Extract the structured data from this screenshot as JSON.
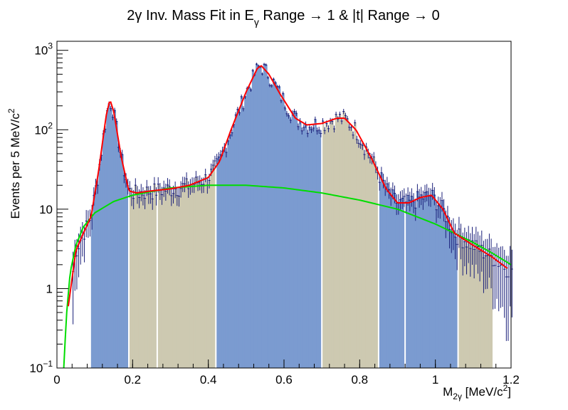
{
  "chart_data": {
    "type": "bar",
    "title": "2γ Inv. Mass Fit in E",
    "title_sub": "γ",
    "title_rest": " Range → 1 & |t| Range → 0",
    "xlabel": "M",
    "xlabel_sub": "2γ",
    "xlabel_rest": " [MeV/c",
    "xlabel_sup": "2",
    "xlabel_end": "]",
    "ylabel": "Events per 5 MeV/c",
    "ylabel_sup": "2",
    "xlim": [
      0,
      1.2
    ],
    "ylim": [
      0.1,
      1300
    ],
    "yscale": "log",
    "grid": false,
    "x_ticks": [
      "0",
      "0.2",
      "0.4",
      "0.6",
      "0.8",
      "1",
      "1.2"
    ],
    "y_ticks": [
      {
        "base": "10",
        "exp": "−1"
      },
      {
        "base": "1",
        "exp": ""
      },
      {
        "base": "10",
        "exp": ""
      },
      {
        "base": "10",
        "exp": "2"
      },
      {
        "base": "10",
        "exp": "3"
      }
    ],
    "colors": {
      "signal_fill": "#7b9bd0",
      "sideband_fill": "#cdc9b1",
      "error_bars": "#1a1f7a",
      "total_fit": "#ff0000",
      "background_fit": "#00dd00"
    },
    "regions": [
      {
        "x": [
          0.09,
          0.19
        ],
        "type": "signal"
      },
      {
        "x": [
          0.19,
          0.42
        ],
        "type": "sideband"
      },
      {
        "x": [
          0.42,
          0.7
        ],
        "type": "signal"
      },
      {
        "x": [
          0.7,
          0.85
        ],
        "type": "sideband"
      },
      {
        "x": [
          0.85,
          1.06
        ],
        "type": "signal"
      },
      {
        "x": [
          1.06,
          1.15
        ],
        "type": "sideband"
      }
    ],
    "series": [
      {
        "x": [
          0.03,
          0.05,
          0.07,
          0.09,
          0.11,
          0.13,
          0.14,
          0.15,
          0.17,
          0.19,
          0.21,
          0.25,
          0.3,
          0.35,
          0.4,
          0.43,
          0.46,
          0.5,
          0.53,
          0.54,
          0.56,
          0.59,
          0.63,
          0.66,
          0.7,
          0.74,
          0.76,
          0.79,
          0.83,
          0.87,
          0.9,
          0.93,
          0.96,
          0.99,
          1.02,
          1.05,
          1.1,
          1.15,
          1.19
        ],
        "values": [
          0.6,
          3.0,
          5.0,
          8.0,
          30,
          150,
          240,
          170,
          45,
          17,
          16,
          17,
          18,
          20,
          25,
          40,
          100,
          300,
          600,
          640,
          500,
          280,
          140,
          115,
          120,
          140,
          140,
          100,
          45,
          18,
          12,
          12,
          14,
          15,
          10,
          5,
          3.5,
          2.5,
          1.8
        ]
      },
      {
        "x": [
          0.018,
          0.025,
          0.035,
          0.05,
          0.07,
          0.1,
          0.15,
          0.2,
          0.3,
          0.4,
          0.5,
          0.6,
          0.7,
          0.8,
          0.9,
          1.0,
          1.05,
          1.1,
          1.15,
          1.2
        ],
        "values": [
          0.1,
          0.45,
          1.6,
          3.5,
          6.0,
          9.0,
          12.5,
          15.0,
          18.5,
          20.0,
          20.0,
          18.5,
          16.0,
          13.0,
          10.0,
          6.5,
          5.0,
          3.8,
          2.8,
          2.0
        ]
      }
    ]
  }
}
